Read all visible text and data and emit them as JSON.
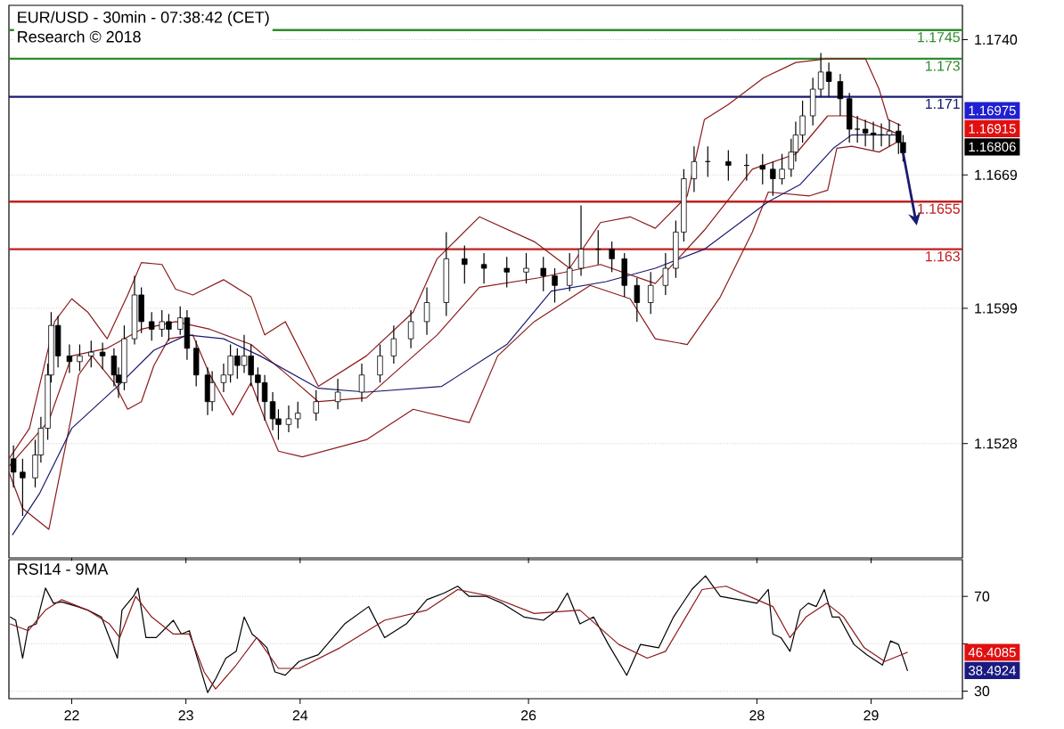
{
  "chart_data": [
    {
      "type": "candlestick",
      "title": "EUR/USD - 30min - 07:38:42 (CET)",
      "subtitle": "Research © 2018",
      "color": "#000000",
      "x": [
        21.49,
        21.57,
        21.68,
        21.73,
        21.79,
        21.82,
        21.88,
        21.98,
        22.07,
        22.17,
        22.27,
        22.37,
        22.41,
        22.46,
        22.55,
        22.61,
        22.7,
        22.79,
        22.85,
        22.95,
        23.01,
        23.09,
        23.19,
        23.23,
        23.33,
        23.39,
        23.45,
        23.51,
        23.57,
        23.63,
        23.69,
        23.76,
        23.81,
        23.9,
        23.98,
        24.14,
        24.33,
        24.54,
        24.7,
        24.82,
        24.97,
        25.11,
        25.28,
        25.44,
        25.61,
        25.81,
        25.98,
        26.13,
        26.23,
        26.36,
        26.46,
        26.61,
        26.73,
        26.84,
        26.95,
        27.07,
        27.2,
        27.29,
        27.36,
        27.45,
        27.57,
        27.75,
        27.91,
        28.05,
        28.14,
        28.22,
        28.3,
        28.34,
        28.4,
        28.49,
        28.56,
        28.63,
        28.73,
        28.81,
        28.88,
        28.95,
        29.02,
        29.09,
        29.16,
        29.24,
        29.28
      ],
      "ohlc": [
        [
          1.152,
          1.1527,
          1.1505,
          1.1513
        ],
        [
          1.1513,
          1.152,
          1.149,
          1.151
        ],
        [
          1.151,
          1.153,
          1.1505,
          1.1522
        ],
        [
          1.1522,
          1.1542,
          1.1518,
          1.1536
        ],
        [
          1.1536,
          1.157,
          1.153,
          1.1564
        ],
        [
          1.1564,
          1.1597,
          1.156,
          1.159
        ],
        [
          1.159,
          1.1595,
          1.1568,
          1.1574
        ],
        [
          1.1574,
          1.158,
          1.1565,
          1.1571
        ],
        [
          1.1571,
          1.158,
          1.1566,
          1.1574
        ],
        [
          1.1574,
          1.1582,
          1.1568,
          1.1576
        ],
        [
          1.1576,
          1.1581,
          1.1567,
          1.1574
        ],
        [
          1.1574,
          1.1578,
          1.1558,
          1.1564
        ],
        [
          1.1564,
          1.1568,
          1.1552,
          1.156
        ],
        [
          1.156,
          1.159,
          1.1556,
          1.1583
        ],
        [
          1.1583,
          1.1616,
          1.158,
          1.1606
        ],
        [
          1.1606,
          1.161,
          1.1586,
          1.1592
        ],
        [
          1.1592,
          1.1597,
          1.1582,
          1.1588
        ],
        [
          1.1588,
          1.1598,
          1.1584,
          1.1592
        ],
        [
          1.1592,
          1.1596,
          1.1582,
          1.1588
        ],
        [
          1.1588,
          1.16,
          1.1585,
          1.1594
        ],
        [
          1.1594,
          1.1598,
          1.1572,
          1.1578
        ],
        [
          1.1578,
          1.1582,
          1.1558,
          1.1564
        ],
        [
          1.1564,
          1.1568,
          1.1543,
          1.155
        ],
        [
          1.155,
          1.1566,
          1.1545,
          1.156
        ],
        [
          1.156,
          1.157,
          1.1555,
          1.1564
        ],
        [
          1.1564,
          1.158,
          1.156,
          1.1574
        ],
        [
          1.1574,
          1.1578,
          1.1562,
          1.1569
        ],
        [
          1.1569,
          1.1585,
          1.1565,
          1.1574
        ],
        [
          1.1574,
          1.158,
          1.1558,
          1.1564
        ],
        [
          1.1564,
          1.1568,
          1.155,
          1.156
        ],
        [
          1.156,
          1.1564,
          1.154,
          1.155
        ],
        [
          1.155,
          1.1555,
          1.1535,
          1.1541
        ],
        [
          1.1541,
          1.1546,
          1.153,
          1.1538
        ],
        [
          1.1538,
          1.1548,
          1.1534,
          1.1541
        ],
        [
          1.1541,
          1.155,
          1.1536,
          1.1544
        ],
        [
          1.1544,
          1.1556,
          1.154,
          1.155
        ],
        [
          1.155,
          1.1562,
          1.1546,
          1.1555
        ],
        [
          1.1555,
          1.157,
          1.155,
          1.1564
        ],
        [
          1.1564,
          1.158,
          1.156,
          1.1574
        ],
        [
          1.1574,
          1.159,
          1.157,
          1.1583
        ],
        [
          1.1583,
          1.1598,
          1.1578,
          1.1592
        ],
        [
          1.1592,
          1.161,
          1.1585,
          1.1602
        ],
        [
          1.1602,
          1.1639,
          1.1595,
          1.1625
        ],
        [
          1.1625,
          1.1632,
          1.1612,
          1.1622
        ],
        [
          1.1622,
          1.1628,
          1.1612,
          1.162
        ],
        [
          1.162,
          1.1626,
          1.161,
          1.1618
        ],
        [
          1.1618,
          1.1628,
          1.1612,
          1.162
        ],
        [
          1.162,
          1.1626,
          1.1608,
          1.1616
        ],
        [
          1.1616,
          1.162,
          1.1602,
          1.1611
        ],
        [
          1.1611,
          1.1628,
          1.1608,
          1.162
        ],
        [
          1.162,
          1.1653,
          1.1616,
          1.163
        ],
        [
          1.163,
          1.164,
          1.1622,
          1.163
        ],
        [
          1.163,
          1.1634,
          1.1618,
          1.1625
        ],
        [
          1.1625,
          1.1628,
          1.1605,
          1.1611
        ],
        [
          1.1611,
          1.1615,
          1.1592,
          1.1602
        ],
        [
          1.1602,
          1.1618,
          1.1596,
          1.1611
        ],
        [
          1.1611,
          1.1628,
          1.1606,
          1.162
        ],
        [
          1.162,
          1.1645,
          1.1615,
          1.1639
        ],
        [
          1.1639,
          1.1672,
          1.1634,
          1.1667
        ],
        [
          1.1667,
          1.1684,
          1.166,
          1.1676
        ],
        [
          1.1676,
          1.1684,
          1.1668,
          1.1676
        ],
        [
          1.1676,
          1.1682,
          1.1666,
          1.1674
        ],
        [
          1.1674,
          1.168,
          1.1666,
          1.1674
        ],
        [
          1.1674,
          1.168,
          1.1664,
          1.1672
        ],
        [
          1.1672,
          1.1676,
          1.1658,
          1.1667
        ],
        [
          1.1667,
          1.168,
          1.1664,
          1.1672
        ],
        [
          1.1672,
          1.1688,
          1.1668,
          1.1681
        ],
        [
          1.1681,
          1.1697,
          1.1676,
          1.169
        ],
        [
          1.169,
          1.1708,
          1.1686,
          1.17
        ],
        [
          1.17,
          1.172,
          1.1695,
          1.1714
        ],
        [
          1.1714,
          1.1733,
          1.171,
          1.1723
        ],
        [
          1.1723,
          1.1728,
          1.171,
          1.1718
        ],
        [
          1.1718,
          1.1722,
          1.17,
          1.1709
        ],
        [
          1.1709,
          1.1712,
          1.1686,
          1.1693
        ],
        [
          1.1693,
          1.17,
          1.1686,
          1.1693
        ],
        [
          1.1693,
          1.1698,
          1.1684,
          1.1691
        ],
        [
          1.1691,
          1.1697,
          1.1682,
          1.169
        ],
        [
          1.169,
          1.1696,
          1.1684,
          1.169
        ],
        [
          1.169,
          1.1698,
          1.1684,
          1.1692
        ],
        [
          1.1692,
          1.1696,
          1.168,
          1.1686
        ],
        [
          1.1686,
          1.169,
          1.1676,
          1.16806
        ]
      ],
      "series": [
        {
          "type": "line",
          "color": "#8b1a1a",
          "x": [
            21.45,
            21.63,
            21.85,
            22,
            22.14,
            22.31,
            22.49,
            22.61,
            22.79,
            22.91,
            23.06,
            23.33,
            23.57,
            23.69,
            23.87,
            24.16,
            24.58,
            24.99,
            25.2,
            25.57,
            26.05,
            26.36,
            26.63,
            26.89,
            27.11,
            27.39,
            27.54,
            27.75,
            28.06,
            28.34,
            28.62,
            28.95,
            29.07,
            29.15,
            29.26
          ],
          "values": [
            1.152,
            1.1536,
            1.1592,
            1.1604,
            1.1597,
            1.1583,
            1.1606,
            1.1623,
            1.1622,
            1.1609,
            1.1606,
            1.1614,
            1.1605,
            1.1585,
            1.1592,
            1.1558,
            1.1574,
            1.1597,
            1.1625,
            1.1647,
            1.1634,
            1.162,
            1.1644,
            1.1647,
            1.1641,
            1.1658,
            1.1698,
            1.1706,
            1.172,
            1.1728,
            1.173,
            1.173,
            1.1714,
            1.1698,
            1.1695
          ]
        },
        {
          "type": "line",
          "color": "#8b1a1a",
          "x": [
            21.45,
            21.8,
            22,
            22.31,
            22.61,
            22.91,
            23.21,
            23.57,
            23.87,
            24.16,
            24.58,
            25.2,
            25.57,
            26.09,
            26.63,
            27.11,
            27.54,
            27.96,
            28.34,
            28.62,
            28.83,
            29.26
          ],
          "values": [
            1.1516,
            1.154,
            1.1574,
            1.1578,
            1.1588,
            1.1592,
            1.1588,
            1.158,
            1.1565,
            1.155,
            1.1552,
            1.1585,
            1.161,
            1.1615,
            1.1622,
            1.1612,
            1.164,
            1.1672,
            1.168,
            1.17,
            1.17,
            1.169
          ]
        },
        {
          "type": "line",
          "color": "#8b1a1a",
          "x": [
            21.45,
            21.57,
            21.8,
            22,
            22.06,
            22.18,
            22.37,
            22.49,
            22.61,
            22.72,
            22.85,
            23.06,
            23.21,
            23.41,
            23.57,
            23.69,
            23.81,
            24.02,
            24.58,
            24.99,
            25.48,
            25.73,
            26.05,
            26.54,
            26.89,
            27.11,
            27.39,
            27.68,
            27.96,
            28.1,
            28.46,
            28.62,
            28.7,
            28.83,
            29.07,
            29.22
          ],
          "values": [
            1.1513,
            1.1494,
            1.1483,
            1.1543,
            1.1564,
            1.1574,
            1.156,
            1.1546,
            1.155,
            1.1569,
            1.1583,
            1.1585,
            1.1564,
            1.1543,
            1.156,
            1.1541,
            1.1524,
            1.1521,
            1.153,
            1.1546,
            1.1539,
            1.1574,
            1.1592,
            1.1611,
            1.1604,
            1.1583,
            1.158,
            1.1605,
            1.1639,
            1.166,
            1.1658,
            1.1661,
            1.1683,
            1.1684,
            1.1681,
            1.1686
          ]
        },
        {
          "type": "line",
          "color": "#1a1a70",
          "x": [
            21.48,
            21.72,
            22,
            22.4,
            22.72,
            23.01,
            23.33,
            23.65,
            24.16,
            24.58,
            25.24,
            25.81,
            26.2,
            26.68,
            27.11,
            27.54,
            28.1,
            28.38,
            28.67,
            28.83,
            29.26
          ],
          "values": [
            1.148,
            1.1502,
            1.1536,
            1.1558,
            1.1577,
            1.1585,
            1.1583,
            1.1574,
            1.1557,
            1.1555,
            1.1558,
            1.158,
            1.1608,
            1.1613,
            1.162,
            1.163,
            1.1655,
            1.1664,
            1.1683,
            1.169,
            1.169
          ]
        }
      ],
      "ref_lines": [
        {
          "axis": "y",
          "value": 1.1745,
          "label": "1.1745",
          "color": "#2e8b2e"
        },
        {
          "axis": "y",
          "value": 1.173,
          "label": "1.173",
          "color": "#2e8b2e"
        },
        {
          "axis": "y",
          "value": 1.171,
          "label": "1.171",
          "color": "#1a1a70"
        },
        {
          "axis": "y",
          "value": 1.1655,
          "label": "1.1655",
          "color": "#c02020"
        },
        {
          "axis": "y",
          "value": 1.163,
          "label": "1.163",
          "color": "#c02020"
        }
      ],
      "annotations": [
        "1.16975",
        "1.16915",
        "1.16806"
      ],
      "xlim": [
        21.45,
        29.8
      ],
      "ylim": [
        1.1468,
        1.1758
      ],
      "xticks": [
        22,
        23,
        24,
        26,
        28,
        29
      ],
      "yticks": [
        {
          "value": 1.174,
          "label": "1.1740"
        },
        1.1669,
        1.1599,
        1.1528
      ],
      "grid": "y",
      "tick_labels": "y"
    },
    {
      "type": "line",
      "title": "RSI14 - 9MA",
      "series": [
        {
          "color": "#000000",
          "x": [
            21.46,
            21.51,
            21.57,
            21.62,
            21.69,
            21.77,
            21.84,
            21.91,
            22.05,
            22.14,
            22.26,
            22.33,
            22.4,
            22.44,
            22.54,
            22.58,
            22.65,
            22.74,
            22.89,
            22.96,
            23.03,
            23.1,
            23.19,
            23.26,
            23.35,
            23.44,
            23.51,
            23.58,
            23.65,
            23.71,
            23.78,
            23.87,
            23.99,
            24.16,
            24.39,
            24.6,
            24.74,
            24.93,
            25.11,
            25.26,
            25.38,
            25.48,
            25.63,
            25.77,
            25.96,
            26.13,
            26.25,
            26.34,
            26.45,
            26.57,
            26.7,
            26.86,
            26.98,
            27.14,
            27.27,
            27.43,
            27.55,
            27.68,
            27.84,
            28.0,
            28.1,
            28.14,
            28.21,
            28.29,
            28.38,
            28.45,
            28.52,
            28.59,
            28.66,
            28.72,
            28.85,
            28.96,
            29.1,
            29.17,
            29.24,
            29.32
          ],
          "values": [
            61.3,
            59.9,
            43.9,
            57.0,
            58.4,
            73.5,
            67.1,
            67.7,
            65.7,
            64.2,
            61.3,
            52.6,
            43.9,
            64.2,
            70,
            73.5,
            52.6,
            52.6,
            59.9,
            54.1,
            55.5,
            43.9,
            29.4,
            35.2,
            43.9,
            46.8,
            61.3,
            54.1,
            51.2,
            48.3,
            38.1,
            36.7,
            42.5,
            45.4,
            58.4,
            65.7,
            52.6,
            58.4,
            68.6,
            71.4,
            74.3,
            70,
            70,
            67.1,
            61.3,
            59.9,
            64.2,
            71.4,
            58.4,
            61.3,
            49.7,
            36.7,
            49.7,
            48.3,
            61.3,
            72.9,
            78.7,
            70,
            68.6,
            67.1,
            72.9,
            54.1,
            52.6,
            46.8,
            64.2,
            67.1,
            65.7,
            72.9,
            61.3,
            61.3,
            49.7,
            45.4,
            41.0,
            51.2,
            49.7,
            38.5
          ]
        },
        {
          "color": "#8b1a1a",
          "x": [
            21.46,
            21.62,
            21.77,
            21.91,
            22.14,
            22.33,
            22.42,
            22.56,
            22.7,
            22.89,
            23.03,
            23.16,
            23.26,
            23.44,
            23.62,
            23.81,
            23.99,
            24.35,
            24.74,
            25.11,
            25.38,
            25.67,
            26.05,
            26.45,
            26.79,
            27.04,
            27.2,
            27.52,
            27.73,
            28.0,
            28.14,
            28.29,
            28.43,
            28.61,
            28.76,
            28.94,
            29.12,
            29.32
          ],
          "values": [
            58.4,
            55.5,
            64.2,
            68.6,
            64.2,
            58.4,
            52.6,
            70,
            61.3,
            54.1,
            54.1,
            38.1,
            30.9,
            41.0,
            52.6,
            39.6,
            39.6,
            48.3,
            59.9,
            64.2,
            72.9,
            70,
            62.8,
            64.2,
            49.7,
            43.9,
            46.8,
            72.9,
            74.3,
            68.6,
            65.7,
            52.6,
            61.3,
            67.1,
            61.3,
            48.3,
            42.5,
            46.4
          ]
        }
      ],
      "annotations": [
        "46.4085",
        "38.4924"
      ],
      "xlim": [
        21.45,
        29.8
      ],
      "ylim": [
        26.8,
        85.5
      ],
      "xticks": [
        22,
        23,
        24,
        26,
        28,
        29
      ],
      "yticks": [
        70,
        {
          "value": 50,
          "label": null
        },
        30
      ],
      "grid": "y"
    }
  ]
}
